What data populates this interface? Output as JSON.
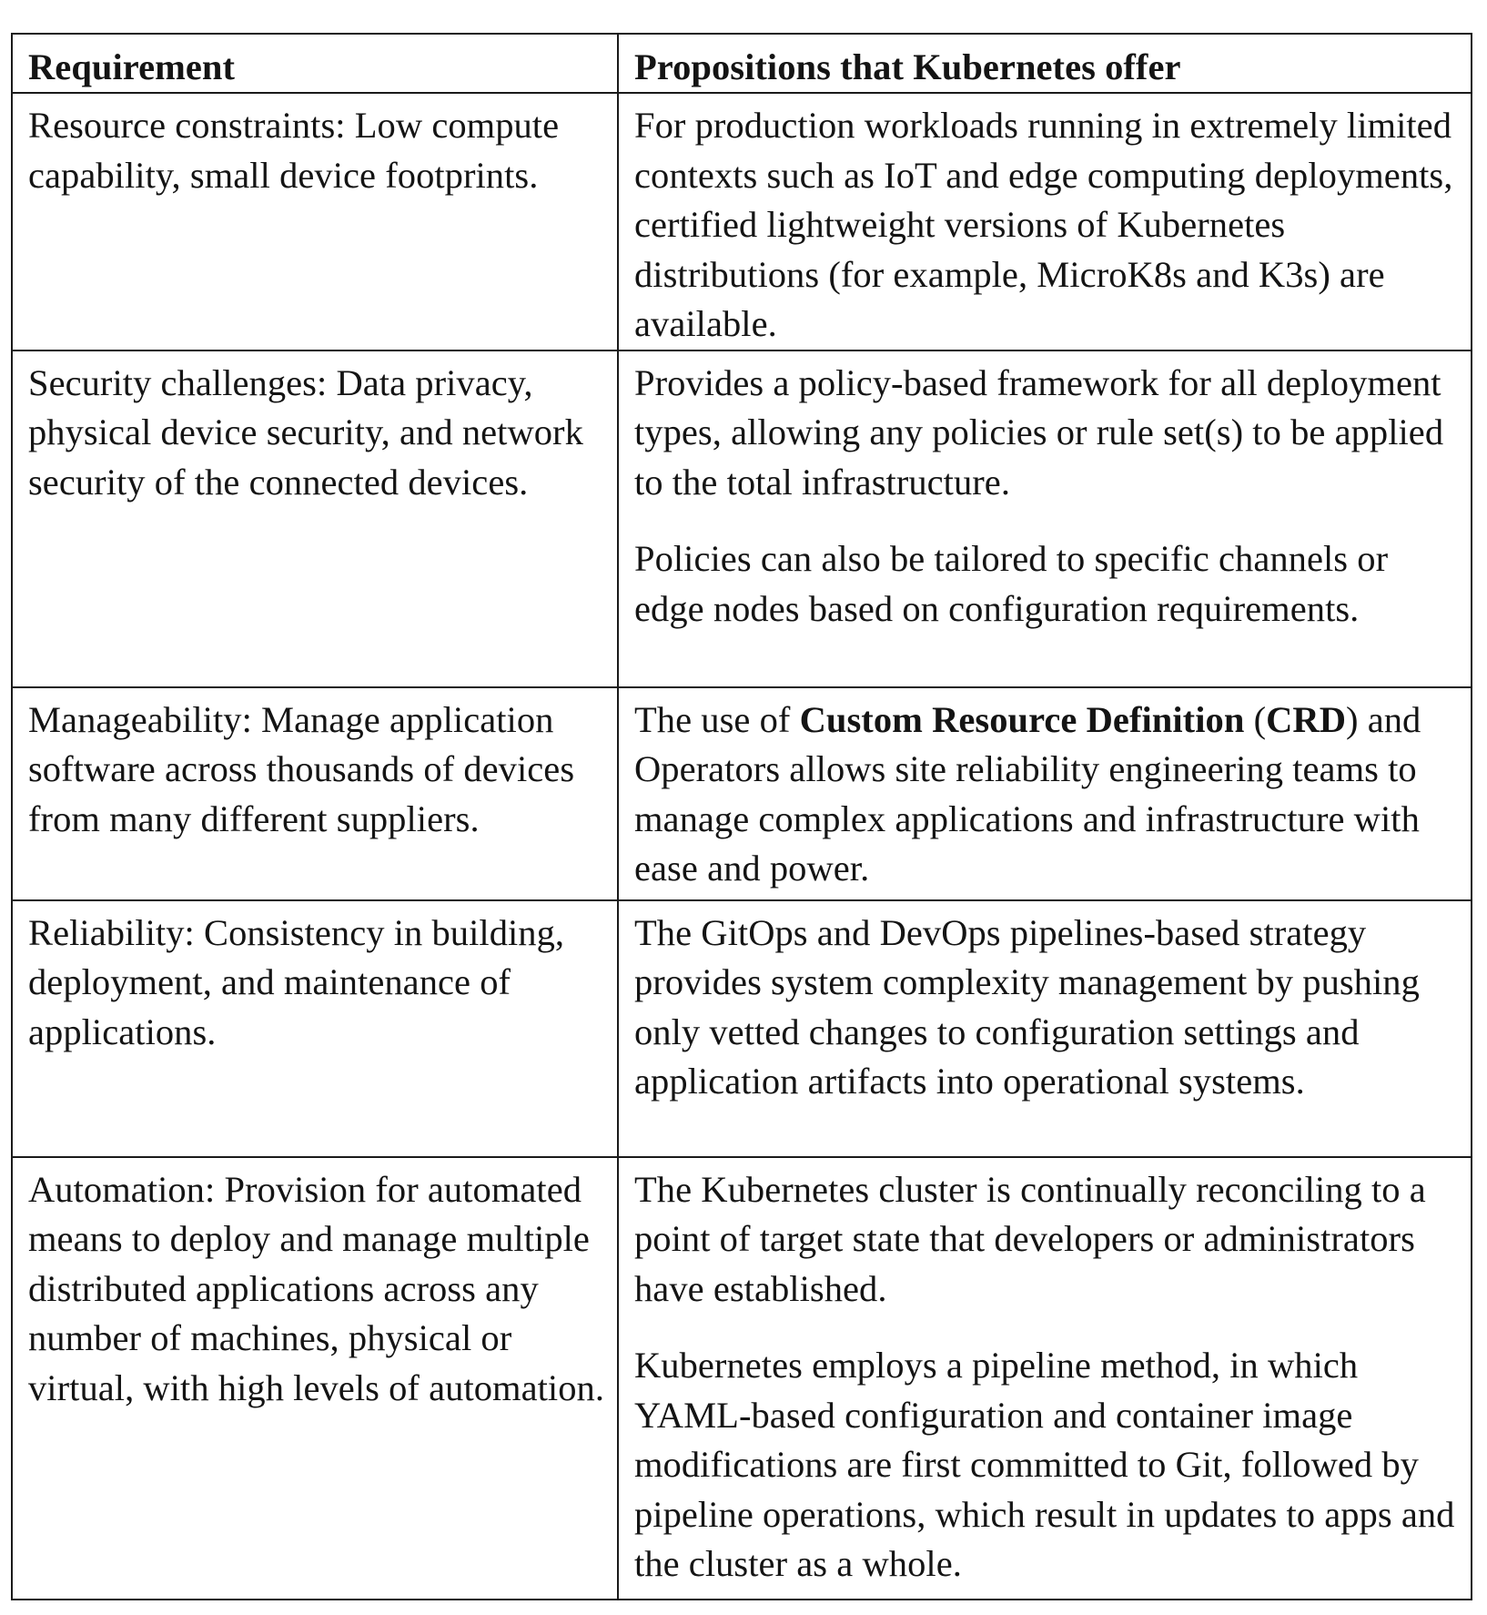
{
  "table": {
    "headers": [
      "Requirement",
      "Propositions that Kubernetes offer"
    ],
    "rows": [
      {
        "requirement": "Resource constraints: Low compute capability, small device footprints.",
        "propositions": [
          "For production workloads running in extremely limited contexts such as IoT and edge computing deployments, certified lightweight versions of Kubernetes distributions (for example, MicroK8s and K3s) are available."
        ]
      },
      {
        "requirement": "Security challenges: Data privacy, physical device security, and network security of the connected devices.",
        "propositions": [
          "Provides a policy-based framework for all deployment types, allowing any policies or rule set(s) to be applied to the total infrastructure.",
          "Policies can also be tailored to specific channels or edge nodes based on configuration requirements."
        ]
      },
      {
        "requirement": "Manageability: Manage application software across thousands of devices from many different suppliers.",
        "propositions_rich": {
          "pre": "The use of ",
          "bold1": "Custom Resource Definition",
          "mid": " (",
          "bold2": "CRD",
          "post": ") and Operators allows site reliability engineering teams to manage complex applications and infrastructure with ease and power."
        }
      },
      {
        "requirement": "Reliability: Consistency in building, deployment, and maintenance of applications.",
        "propositions": [
          "The GitOps and DevOps pipelines-based strategy provides system complexity management by pushing only vetted changes to configuration settings and application artifacts into operational systems."
        ]
      },
      {
        "requirement": "Automation: Provision for automated means to deploy and manage multiple distributed applications across any number of machines, physical or virtual, with high levels of automation.",
        "propositions": [
          "The Kubernetes cluster is continually reconciling to a point of target state that developers or administrators have established.",
          "Kubernetes employs a pipeline method, in which YAML-based configuration and container image modifications are first committed to Git, followed by pipeline operations, which result in updates to apps and the cluster as a whole."
        ]
      }
    ]
  }
}
